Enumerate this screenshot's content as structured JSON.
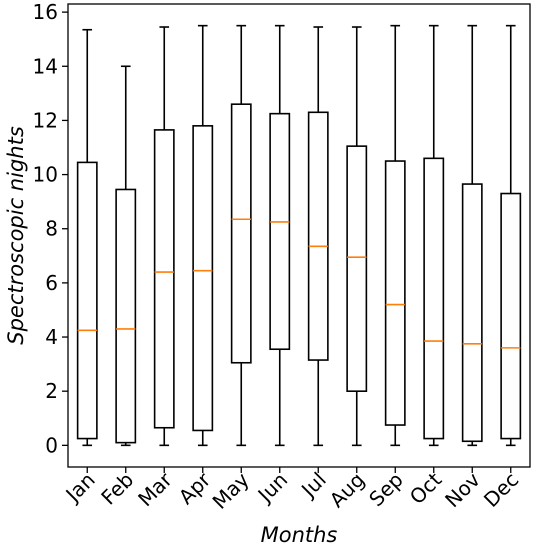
{
  "chart_data": {
    "type": "boxplot",
    "title": "",
    "xlabel": "Months",
    "ylabel": "Spectroscopic nights",
    "ylim": [
      -0.8,
      16.3
    ],
    "yticks": [
      0,
      2,
      4,
      6,
      8,
      10,
      12,
      14,
      16
    ],
    "grid": false,
    "colors": {
      "box": "#000000",
      "median": "#ff7f0e",
      "whisker": "#000000"
    },
    "categories": [
      "Jan",
      "Feb",
      "Mar",
      "Apr",
      "May",
      "Jun",
      "Jul",
      "Aug",
      "Sep",
      "Oct",
      "Nov",
      "Dec"
    ],
    "boxes": [
      {
        "month": "Jan",
        "whislo": 0.0,
        "q1": 0.25,
        "med": 4.25,
        "q3": 10.45,
        "whishi": 15.35
      },
      {
        "month": "Feb",
        "whislo": 0.0,
        "q1": 0.1,
        "med": 4.3,
        "q3": 9.45,
        "whishi": 14.0
      },
      {
        "month": "Mar",
        "whislo": 0.0,
        "q1": 0.65,
        "med": 6.4,
        "q3": 11.65,
        "whishi": 15.45
      },
      {
        "month": "Apr",
        "whislo": 0.0,
        "q1": 0.55,
        "med": 6.45,
        "q3": 11.8,
        "whishi": 15.5
      },
      {
        "month": "May",
        "whislo": 0.0,
        "q1": 3.05,
        "med": 8.35,
        "q3": 12.6,
        "whishi": 15.5
      },
      {
        "month": "Jun",
        "whislo": 0.0,
        "q1": 3.55,
        "med": 8.25,
        "q3": 12.25,
        "whishi": 15.5
      },
      {
        "month": "Jul",
        "whislo": 0.0,
        "q1": 3.15,
        "med": 7.35,
        "q3": 12.3,
        "whishi": 15.45
      },
      {
        "month": "Aug",
        "whislo": 0.0,
        "q1": 2.0,
        "med": 6.95,
        "q3": 11.05,
        "whishi": 15.45
      },
      {
        "month": "Sep",
        "whislo": 0.0,
        "q1": 0.75,
        "med": 5.2,
        "q3": 10.5,
        "whishi": 15.5
      },
      {
        "month": "Oct",
        "whislo": 0.0,
        "q1": 0.25,
        "med": 3.85,
        "q3": 10.6,
        "whishi": 15.5
      },
      {
        "month": "Nov",
        "whislo": 0.0,
        "q1": 0.15,
        "med": 3.75,
        "q3": 9.65,
        "whishi": 15.5
      },
      {
        "month": "Dec",
        "whislo": 0.0,
        "q1": 0.25,
        "med": 3.6,
        "q3": 9.3,
        "whishi": 15.5
      }
    ]
  }
}
